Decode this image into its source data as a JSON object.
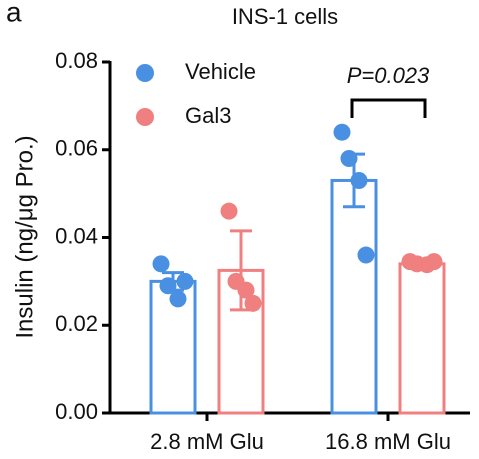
{
  "chart_data": {
    "type": "bar",
    "panel_label": "a",
    "title": "INS-1 cells",
    "y_label": "Insulin (ng/μg Pro.)",
    "categories": [
      "2.8 mM Glu",
      "16.8 mM Glu"
    ],
    "series": [
      {
        "name": "Vehicle",
        "color": "#4a90e2",
        "values": [
          0.03,
          0.053
        ],
        "errors": [
          0.002,
          0.006
        ],
        "points": [
          [
            0.034,
            0.029,
            0.026,
            0.03
          ],
          [
            0.064,
            0.058,
            0.053,
            0.036
          ]
        ]
      },
      {
        "name": "Gal3",
        "color": "#f08080",
        "values": [
          0.0325,
          0.034
        ],
        "errors": [
          0.009,
          0.0005
        ],
        "points": [
          [
            0.046,
            0.03,
            0.028,
            0.025
          ],
          [
            0.0345,
            0.034,
            0.0338,
            0.0345
          ]
        ]
      }
    ],
    "ylim": [
      0,
      0.08
    ],
    "yticks": [
      {
        "value": 0,
        "label": "0.00"
      },
      {
        "value": 0.02,
        "label": "0.02"
      },
      {
        "value": 0.04,
        "label": "0.04"
      },
      {
        "value": 0.06,
        "label": "0.06"
      },
      {
        "value": 0.08,
        "label": "0.08"
      }
    ],
    "annotation": "P=0.023"
  }
}
